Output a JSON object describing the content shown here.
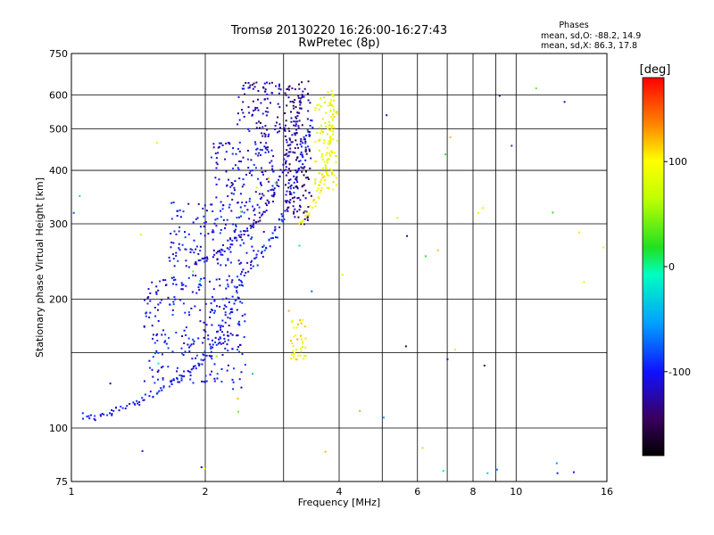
{
  "chart_data": {
    "type": "scatter",
    "title": "Tromsø 20130220 16:26:00-16:27:43",
    "subtitle": "RwPretec (8p)",
    "xlabel": "Frequency [MHz]",
    "ylabel": "Stationary phase Virtual Height [km]",
    "x_scale": "log",
    "y_scale": "log",
    "xlim": [
      1,
      16
    ],
    "ylim": [
      75,
      750
    ],
    "x_ticks": [
      1,
      2,
      4,
      6,
      8,
      10,
      16
    ],
    "x_tick_labels": [
      "1",
      "2",
      "4",
      "6",
      "8",
      "10",
      "16"
    ],
    "x_minor_grid": [
      3,
      5,
      7,
      9
    ],
    "y_ticks": [
      75,
      100,
      200,
      300,
      400,
      500,
      600,
      750
    ],
    "y_tick_labels": [
      "75",
      "100",
      "200",
      "300",
      "400",
      "500",
      "600",
      "750"
    ],
    "y_minor_grid": [
      150
    ],
    "grid": true,
    "stats": {
      "heading": "Phases",
      "line_o": "mean, sd,O: -88.2, 14.9",
      "line_x": "mean, sd,X:  86.3, 17.8"
    },
    "colorbar": {
      "label": "[deg]",
      "range": [
        -180,
        180
      ],
      "ticks": [
        100,
        0,
        -100
      ],
      "tick_labels": [
        "100",
        "0",
        "-100"
      ]
    },
    "traces": [
      {
        "name": "o-lower",
        "phase": -100,
        "spread": 8,
        "points": [
          [
            1.05,
            108
          ],
          [
            1.1,
            106
          ],
          [
            1.2,
            108
          ],
          [
            1.3,
            112
          ],
          [
            1.4,
            116
          ],
          [
            1.5,
            120
          ],
          [
            1.6,
            124
          ],
          [
            1.7,
            128
          ],
          [
            1.8,
            134
          ],
          [
            1.9,
            140
          ],
          [
            2.0,
            148
          ],
          [
            2.1,
            160
          ],
          [
            2.2,
            178
          ],
          [
            2.3,
            200
          ],
          [
            2.4,
            225
          ],
          [
            2.55,
            245
          ],
          [
            2.7,
            262
          ],
          [
            2.85,
            285
          ],
          [
            3.0,
            320
          ],
          [
            3.15,
            380
          ],
          [
            3.3,
            450
          ],
          [
            3.45,
            530
          ]
        ]
      },
      {
        "name": "o-upper",
        "phase": -120,
        "spread": 6,
        "points": [
          [
            1.85,
            240
          ],
          [
            2.0,
            250
          ],
          [
            2.2,
            265
          ],
          [
            2.4,
            282
          ],
          [
            2.6,
            305
          ],
          [
            2.8,
            340
          ],
          [
            2.95,
            390
          ],
          [
            3.1,
            460
          ],
          [
            3.2,
            540
          ],
          [
            3.3,
            610
          ]
        ]
      },
      {
        "name": "o-cluster-low",
        "phase": -105,
        "scatter": true,
        "count": 260,
        "bounds": [
          [
            1.45,
            2.45
          ],
          [
            128,
            230
          ]
        ]
      },
      {
        "name": "o-cluster-mid",
        "phase": -105,
        "scatter": true,
        "count": 160,
        "bounds": [
          [
            1.65,
            2.7
          ],
          [
            240,
            340
          ]
        ]
      },
      {
        "name": "o-cluster-high",
        "phase": -110,
        "scatter": true,
        "count": 120,
        "bounds": [
          [
            2.05,
            2.85
          ],
          [
            340,
            470
          ]
        ]
      },
      {
        "name": "o-cusp-top",
        "phase": -120,
        "scatter": true,
        "count": 90,
        "bounds": [
          [
            2.35,
            2.95
          ],
          [
            480,
            650
          ]
        ]
      },
      {
        "name": "o-dark-band",
        "phase": -140,
        "scatter": true,
        "count": 160,
        "bounds": [
          [
            3.0,
            3.45
          ],
          [
            300,
            650
          ]
        ]
      },
      {
        "name": "x-trace",
        "phase": 95,
        "spread": 6,
        "points": [
          [
            3.2,
            300
          ],
          [
            3.3,
            305
          ],
          [
            3.45,
            325
          ],
          [
            3.6,
            360
          ],
          [
            3.7,
            400
          ],
          [
            3.78,
            450
          ],
          [
            3.82,
            500
          ],
          [
            3.85,
            560
          ],
          [
            3.8,
            620
          ]
        ]
      },
      {
        "name": "x-cluster-high",
        "phase": 90,
        "scatter": true,
        "count": 90,
        "bounds": [
          [
            3.5,
            3.95
          ],
          [
            360,
            600
          ]
        ]
      },
      {
        "name": "x-low",
        "phase": 100,
        "scatter": true,
        "count": 40,
        "bounds": [
          [
            3.1,
            3.35
          ],
          [
            145,
            180
          ]
        ]
      },
      {
        "name": "noise",
        "phase": 0,
        "noise": true,
        "count": 60,
        "bounds": [
          [
            1,
            16
          ],
          [
            75,
            700
          ]
        ]
      }
    ]
  }
}
